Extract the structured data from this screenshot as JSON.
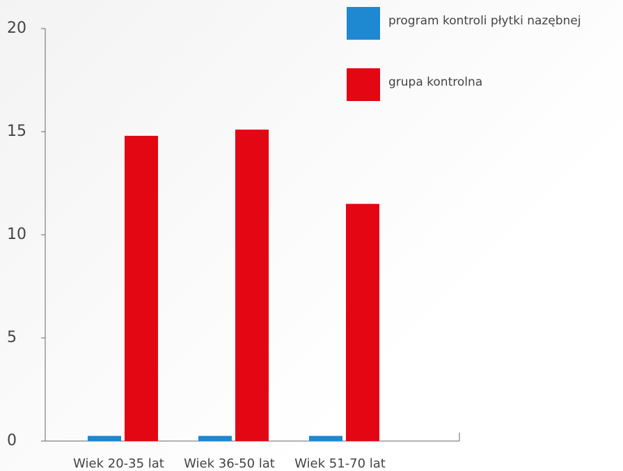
{
  "chart_data": {
    "type": "bar",
    "categories": [
      "Wiek 20-35 lat",
      "Wiek 36-50 lat",
      "Wiek 51-70 lat"
    ],
    "series": [
      {
        "name": "program kontroli płytki nazębnej",
        "color": "#1e88d0",
        "values": [
          0.25,
          0.25,
          0.25
        ]
      },
      {
        "name": "grupa kontrolna",
        "color": "#e30613",
        "values": [
          14.8,
          15.1,
          11.5
        ]
      }
    ],
    "ylim": [
      0,
      20
    ],
    "yticks": [
      0,
      5,
      10,
      15,
      20
    ],
    "grid": false,
    "legend": "top-right"
  }
}
